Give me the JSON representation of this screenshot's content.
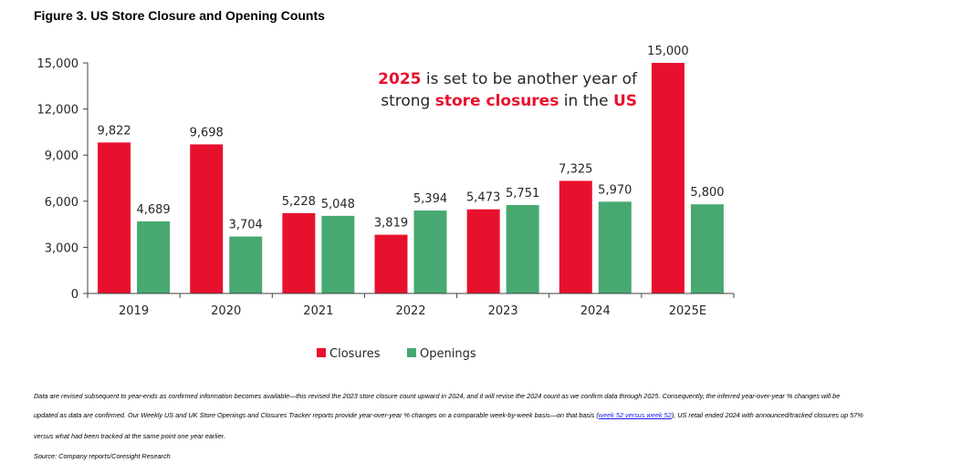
{
  "figure_title": "Figure 3. US Store Closure and Opening Counts",
  "colors": {
    "closures": "#e8112d",
    "openings": "#47a971",
    "red_text": "#e8112d"
  },
  "callout": {
    "line1_highlight": "2025",
    "line1_rest": " is set to be another year of",
    "line2_a": "strong ",
    "line2_highlight": "store closures",
    "line2_b": " in the ",
    "line2_highlight2": "US"
  },
  "footnote": {
    "line1": "Data are revised subsequent to year-ends as confirmed information becomes available—this revised the 2023 store closure count upward in 2024, and it will revise the 2024 count as we confirm data through 2025. Consequently, the inferred year-over-year % changes will be",
    "line2_pre": "updated as data are confirmed. Our Weekly US and UK Store Openings and Closures Tracker reports provide year-over-year % changes on a comparable week-by-week basis—on that basis (",
    "line2_link": "week 52 versus week 52",
    "line2_post": "), US retail ended 2024 with announced/tracked closures up 57%",
    "line3": "versus what had been tracked at the same point one year earlier.",
    "source": "Source: Company reports/Coresight Research"
  },
  "chart_data": {
    "type": "bar",
    "title": "Figure 3. US Store Closure and Opening Counts",
    "categories": [
      "2019",
      "2020",
      "2021",
      "2022",
      "2023",
      "2024",
      "2025E"
    ],
    "series": [
      {
        "name": "Closures",
        "values": [
          9822,
          9698,
          5228,
          3819,
          5473,
          7325,
          15000
        ],
        "labels": [
          "9,822",
          "9,698",
          "5,228",
          "3,819",
          "5,473",
          "7,325",
          "15,000"
        ]
      },
      {
        "name": "Openings",
        "values": [
          4689,
          3704,
          5048,
          5394,
          5751,
          5970,
          5800
        ],
        "labels": [
          "4,689",
          "3,704",
          "5,048",
          "5,394",
          "5,751",
          "5,970",
          "5,800"
        ]
      }
    ],
    "ylim": [
      0,
      15000
    ],
    "yticks": [
      0,
      3000,
      6000,
      9000,
      12000,
      15000
    ],
    "ytick_labels": [
      "0",
      "3,000",
      "6,000",
      "9,000",
      "12,000",
      "15,000"
    ],
    "xlabel": "",
    "ylabel": "",
    "grid": false,
    "legend": "bottom-center"
  }
}
